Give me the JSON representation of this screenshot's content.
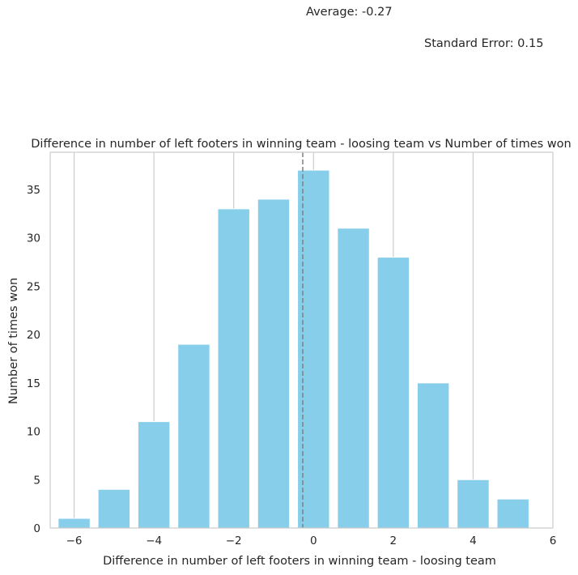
{
  "annotations": {
    "average": "Average: -0.27",
    "standard_error": "Standard Error: 0.15"
  },
  "chart_data": {
    "type": "bar",
    "title": "Difference in number of left footers in winning team - loosing team vs Number of times won",
    "xlabel": "Difference in number of left footers in winning team - loosing team",
    "ylabel": "Number of times won",
    "x": [
      -6,
      -5,
      -4,
      -3,
      -2,
      -1,
      0,
      1,
      2,
      3,
      4,
      5
    ],
    "values": [
      1,
      4,
      11,
      19,
      33,
      34,
      37,
      31,
      28,
      15,
      5,
      3
    ],
    "xlim": [
      -6.6,
      6.0
    ],
    "ylim": [
      0,
      38.85
    ],
    "xticks": [
      -6,
      -4,
      -2,
      0,
      2,
      4,
      6
    ],
    "xtick_labels": [
      "−6",
      "−4",
      "−2",
      "0",
      "2",
      "4",
      "6"
    ],
    "yticks": [
      0,
      5,
      10,
      15,
      20,
      25,
      30,
      35
    ],
    "mean_line_x": -0.27,
    "bar_color": "#87ceeb",
    "grid_color": "#cccccc",
    "mean_line_color": "#808080",
    "grid": "vertical"
  }
}
